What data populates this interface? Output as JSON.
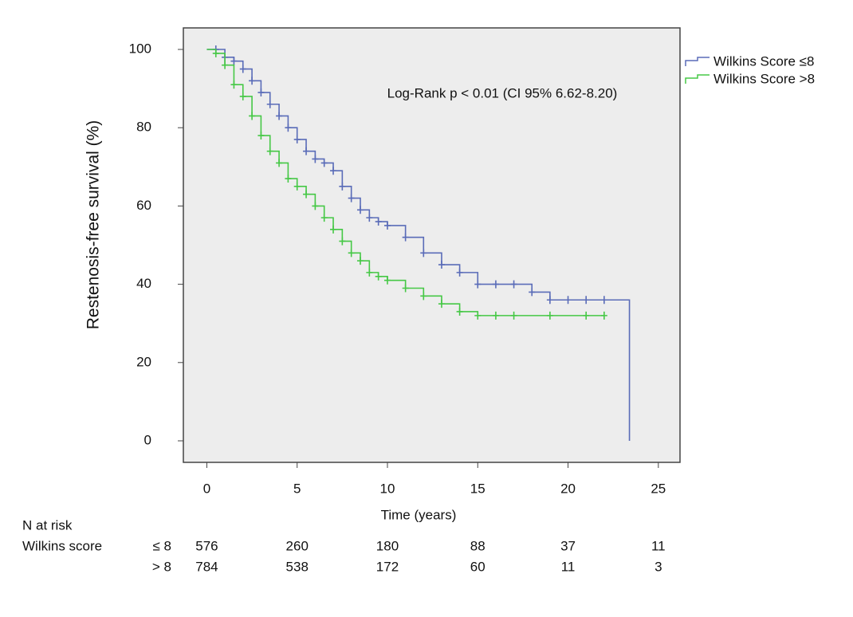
{
  "chart_data": {
    "type": "step",
    "xlabel": "Time (years)",
    "ylabel": "Restenosis-free survival (%)",
    "annotation": "Log-Rank p < 0.01 (CI 95% 6.62-8.20)",
    "xlim": [
      -1.3,
      26.2
    ],
    "ylim": [
      -5.5,
      105.5
    ],
    "xticks": [
      0,
      5,
      10,
      15,
      20,
      25
    ],
    "yticks": [
      0,
      20,
      40,
      60,
      80,
      100
    ],
    "legend": "outside-top-right",
    "series": [
      {
        "name": "Wilkins Score ≤8",
        "color": "#5a6cb8",
        "x": [
          0,
          0.5,
          1,
          1.5,
          2,
          2.5,
          3,
          3.5,
          4,
          4.5,
          5,
          5.5,
          6,
          6.5,
          7,
          7.5,
          8,
          8.5,
          9,
          9.5,
          10,
          11,
          12,
          13,
          14,
          15,
          16,
          17,
          18,
          19,
          20,
          21,
          22,
          23.4
        ],
        "values": [
          100,
          100,
          98,
          97,
          95,
          92,
          89,
          86,
          83,
          80,
          77,
          74,
          72,
          71,
          69,
          65,
          62,
          59,
          57,
          56,
          55,
          52,
          48,
          45,
          43,
          40,
          40,
          40,
          38,
          36,
          36,
          36,
          36,
          0
        ]
      },
      {
        "name": "Wilkins Score >8",
        "color": "#46c846",
        "x": [
          0,
          0.5,
          1,
          1.5,
          2,
          2.5,
          3,
          3.5,
          4,
          4.5,
          5,
          5.5,
          6,
          6.5,
          7,
          7.5,
          8,
          8.5,
          9,
          9.5,
          10,
          11,
          12,
          13,
          14,
          15,
          16,
          17,
          19,
          21,
          22
        ],
        "values": [
          100,
          99,
          96,
          91,
          88,
          83,
          78,
          74,
          71,
          67,
          65,
          63,
          60,
          57,
          54,
          51,
          48,
          46,
          43,
          42,
          41,
          39,
          37,
          35,
          33,
          32,
          32,
          32,
          32,
          32,
          32
        ]
      }
    ],
    "risk_table": {
      "title": "N at risk",
      "label": "Wilkins score",
      "rows": [
        {
          "name": "≤ 8",
          "values": [
            576,
            260,
            180,
            88,
            37,
            11
          ]
        },
        {
          "name": "> 8",
          "values": [
            784,
            538,
            172,
            60,
            11,
            3
          ]
        }
      ]
    }
  }
}
